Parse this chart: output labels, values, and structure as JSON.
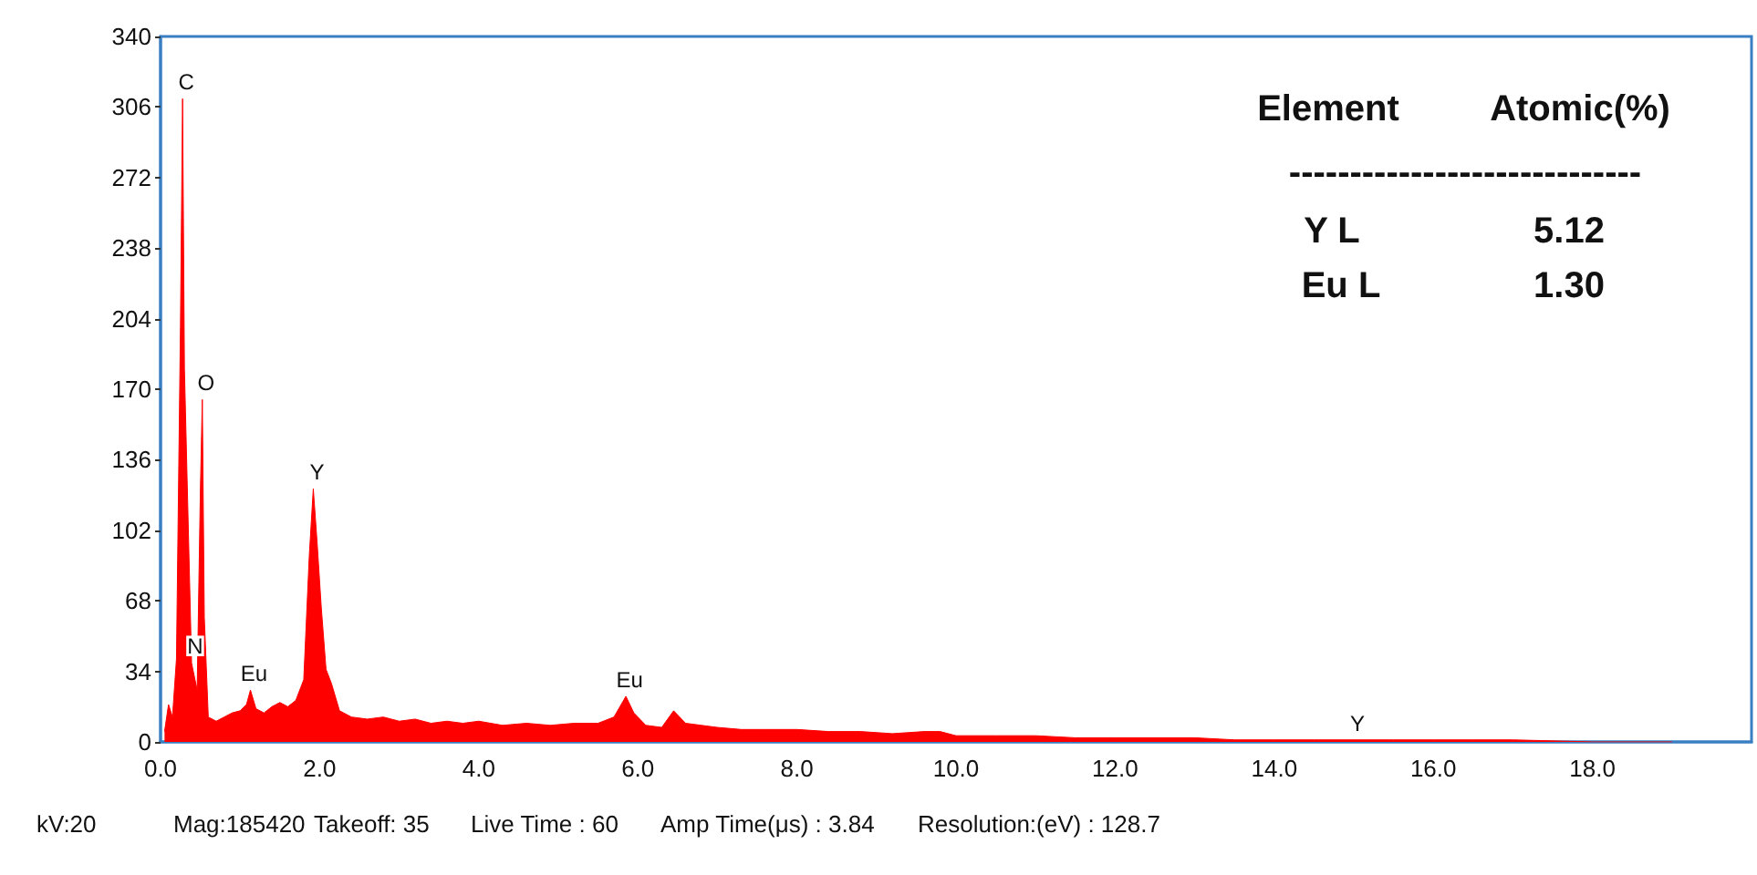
{
  "chart_data": {
    "type": "area",
    "x": [
      0.05,
      0.1,
      0.15,
      0.2,
      0.25,
      0.277,
      0.3,
      0.39,
      0.46,
      0.5,
      0.525,
      0.55,
      0.6,
      0.7,
      0.8,
      0.9,
      1.0,
      1.08,
      1.13,
      1.2,
      1.3,
      1.4,
      1.5,
      1.6,
      1.7,
      1.8,
      1.87,
      1.92,
      1.97,
      2.02,
      2.08,
      2.15,
      2.25,
      2.4,
      2.6,
      2.8,
      3.0,
      3.2,
      3.4,
      3.6,
      3.8,
      4.0,
      4.3,
      4.6,
      4.9,
      5.2,
      5.5,
      5.7,
      5.85,
      5.95,
      6.1,
      6.3,
      6.45,
      6.6,
      6.8,
      7.0,
      7.3,
      7.6,
      8.0,
      8.4,
      8.8,
      9.2,
      9.6,
      9.8,
      10.0,
      10.5,
      11.0,
      11.5,
      12.0,
      12.5,
      13.0,
      13.5,
      14.0,
      14.5,
      15.0,
      15.5,
      16.0,
      16.5,
      17.0,
      18.0,
      19.0
    ],
    "series": [
      {
        "color": "#ff0000",
        "values": [
          5,
          18,
          12,
          40,
          200,
          310,
          180,
          38,
          25,
          120,
          165,
          60,
          12,
          10,
          12,
          14,
          15,
          18,
          25,
          16,
          14,
          17,
          19,
          17,
          20,
          30,
          90,
          122,
          95,
          65,
          35,
          28,
          15,
          12,
          11,
          12,
          10,
          11,
          9,
          10,
          9,
          10,
          8,
          9,
          8,
          9,
          9,
          12,
          22,
          14,
          8,
          7,
          15,
          9,
          8,
          7,
          6,
          6,
          6,
          5,
          5,
          4,
          5,
          5,
          3,
          3,
          3,
          2,
          2,
          2,
          2,
          1,
          1,
          1,
          1,
          1,
          1,
          1,
          1,
          0,
          0
        ]
      }
    ],
    "xlim": [
      0,
      20
    ],
    "xticks": [
      {
        "value": 0,
        "label": "0.0"
      },
      {
        "value": 2,
        "label": "2.0"
      },
      {
        "value": 4,
        "label": "4.0"
      },
      {
        "value": 6,
        "label": "6.0"
      },
      {
        "value": 8,
        "label": "8.0"
      },
      {
        "value": 10,
        "label": "10.0"
      },
      {
        "value": 12,
        "label": "12.0"
      },
      {
        "value": 14,
        "label": "14.0"
      },
      {
        "value": 16,
        "label": "16.0"
      },
      {
        "value": 18,
        "label": "18.0"
      }
    ],
    "ylim": [
      0,
      340
    ],
    "yticks": [
      0,
      34,
      68,
      102,
      136,
      170,
      204,
      238,
      272,
      306,
      340
    ],
    "grid": false,
    "annotations": [
      {
        "text": "C",
        "x": 0.277,
        "y": 310
      },
      {
        "text": "N",
        "x": 0.39,
        "y": 38
      },
      {
        "text": "O",
        "x": 0.525,
        "y": 165
      },
      {
        "text": "Eu",
        "x": 1.13,
        "y": 25
      },
      {
        "text": "Y",
        "x": 1.92,
        "y": 122
      },
      {
        "text": "Eu",
        "x": 5.85,
        "y": 22
      },
      {
        "text": "Y",
        "x": 15.0,
        "y": 1
      },
      "Element",
      "Atomic(%)",
      "-----------------------------",
      "Y L",
      "5.12",
      "Eu L",
      "1.30",
      "kV:20",
      "Mag:185420",
      "Takeoff: 35",
      "Live Time : 60",
      "Amp Time(μs) : 3.84",
      "Resolution:(eV) : 128.7"
    ]
  }
}
